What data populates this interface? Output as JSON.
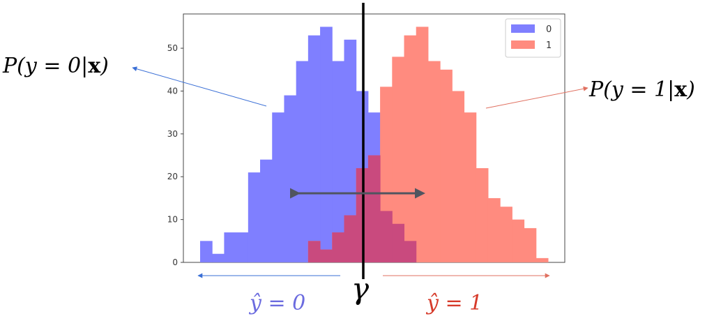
{
  "chart_data": {
    "type": "bar",
    "subtype": "overlapping-histogram",
    "title": "",
    "xlabel": "",
    "ylabel": "",
    "ylim": [
      0,
      58
    ],
    "yticks": [
      0,
      10,
      20,
      30,
      40,
      50
    ],
    "grid": false,
    "legend_position": "top-right",
    "series": [
      {
        "name": "0",
        "color": "#7f7fff",
        "values": [
          5,
          2,
          7,
          7,
          21,
          24,
          35,
          39,
          47,
          53,
          55,
          47,
          52,
          40,
          35,
          12,
          9,
          5,
          0,
          0,
          0,
          0,
          0,
          0,
          0,
          0,
          0,
          0,
          0
        ]
      },
      {
        "name": "1",
        "color": "#ff8b7f",
        "values": [
          0,
          0,
          0,
          0,
          0,
          0,
          0,
          0,
          0,
          5,
          3,
          7,
          11,
          22,
          25,
          41,
          48,
          53,
          55,
          47,
          45,
          40,
          35,
          22,
          15,
          13,
          10,
          8,
          1
        ]
      }
    ],
    "bins": 29,
    "overlap_color": "#c94a7e"
  },
  "annotations": {
    "left_label": "P(y = 0|x)",
    "left_label_parts": {
      "prefix": "P(y = 0|",
      "bold": "x",
      "suffix": ")"
    },
    "right_label": "P(y = 1|x)",
    "right_label_parts": {
      "prefix": "P(y = 1|",
      "bold": "x",
      "suffix": ")"
    },
    "threshold_label": "γ",
    "below_left": "ŷ = 0",
    "below_right": "ŷ = 1",
    "colors": {
      "left_arrow": "#3a6fd6",
      "right_arrow": "#e07060",
      "below_left_text": "#6b6bdf",
      "below_right_text": "#d63a2a",
      "threshold": "#000000",
      "double_arrow": "#505560"
    }
  }
}
